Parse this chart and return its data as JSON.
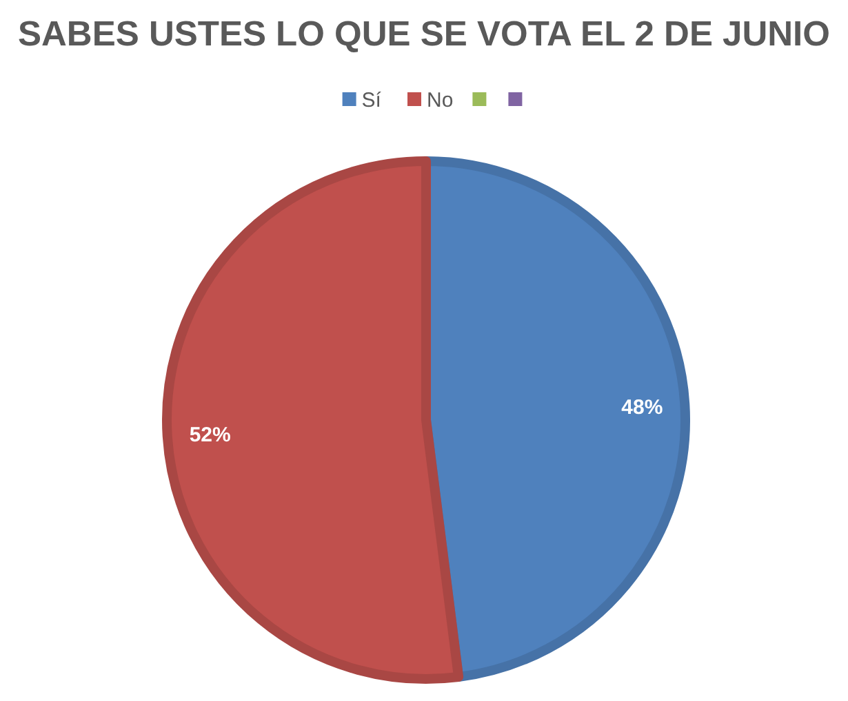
{
  "chart_data": {
    "type": "pie",
    "title": "SABES USTES LO QUE SE VOTA EL 2 DE JUNIO",
    "categories": [
      "Sí",
      "No",
      null,
      null
    ],
    "values": [
      48,
      52,
      0,
      0
    ],
    "colors": [
      "#4f81bd",
      "#c0504d",
      "#9bbb59",
      "#8064a2"
    ],
    "value_labels": [
      "48%",
      "52%",
      null,
      null
    ],
    "legend": "top"
  }
}
